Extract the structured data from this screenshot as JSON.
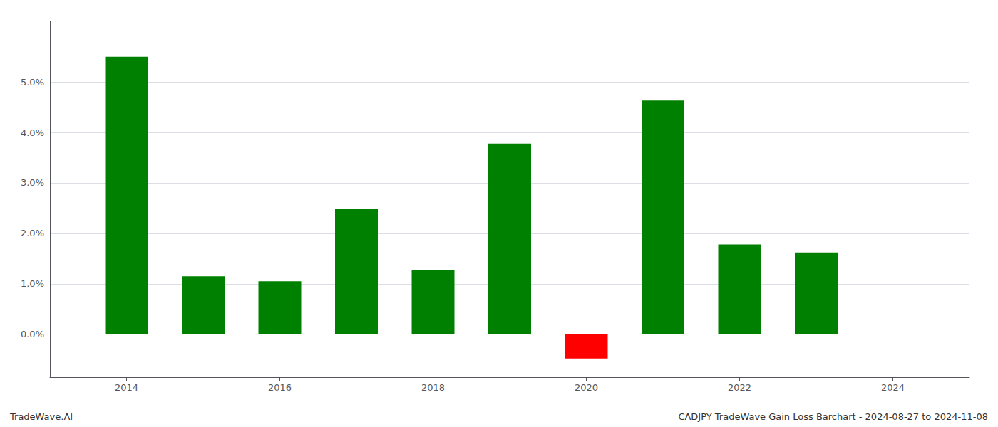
{
  "chart_data": {
    "type": "bar",
    "x": [
      2014,
      2015,
      2016,
      2017,
      2018,
      2019,
      2020,
      2021,
      2022,
      2023
    ],
    "values": [
      0.055,
      0.0115,
      0.0105,
      0.0248,
      0.0128,
      0.0378,
      -0.0048,
      0.0463,
      0.0178,
      0.0162
    ],
    "colors": [
      "#008000",
      "#008000",
      "#008000",
      "#008000",
      "#008000",
      "#008000",
      "#ff0000",
      "#008000",
      "#008000",
      "#008000"
    ],
    "xlim": [
      2013.0,
      2025.0
    ],
    "xticks": [
      2014,
      2016,
      2018,
      2020,
      2022,
      2024
    ],
    "ylim": [
      -0.0085,
      0.062
    ],
    "yticks": [
      {
        "value": 0.0,
        "label": "0.0%"
      },
      {
        "value": 0.01,
        "label": "1.0%"
      },
      {
        "value": 0.02,
        "label": "2.0%"
      },
      {
        "value": 0.03,
        "label": "3.0%"
      },
      {
        "value": 0.04,
        "label": "4.0%"
      },
      {
        "value": 0.05,
        "label": "5.0%"
      }
    ],
    "grid": true,
    "annotations": [
      "TradeWave.AI",
      "CADJPY TradeWave Gain Loss Barchart - 2024-08-27 to 2024-11-08"
    ]
  }
}
